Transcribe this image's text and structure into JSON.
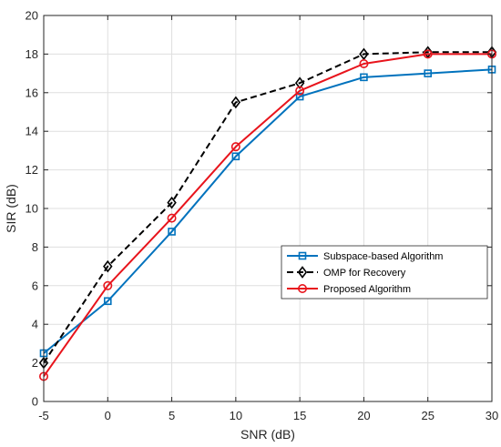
{
  "chart_data": {
    "type": "line",
    "title": "",
    "xlabel": "SNR (dB)",
    "ylabel": "SIR (dB)",
    "xlim": [
      -5,
      30
    ],
    "ylim": [
      0,
      20
    ],
    "xticks": [
      -5,
      0,
      5,
      10,
      15,
      20,
      25,
      30
    ],
    "yticks": [
      0,
      2,
      4,
      6,
      8,
      10,
      12,
      14,
      16,
      18,
      20
    ],
    "grid": true,
    "legend_position": "lower-right",
    "x": [
      -5,
      0,
      5,
      10,
      15,
      20,
      25,
      30
    ],
    "series": [
      {
        "name": "Subspace-based Algorithm",
        "values": [
          2.5,
          5.2,
          8.8,
          12.7,
          15.8,
          16.8,
          17.0,
          17.2
        ],
        "color": "#0072BD",
        "linestyle": "solid",
        "marker": "square"
      },
      {
        "name": "OMP for Recovery",
        "values": [
          2.0,
          7.0,
          10.3,
          15.5,
          16.5,
          18.0,
          18.1,
          18.1
        ],
        "color": "#000000",
        "linestyle": "dashed",
        "marker": "diamond"
      },
      {
        "name": "Proposed Algorithm",
        "values": [
          1.3,
          6.0,
          9.5,
          13.2,
          16.1,
          17.5,
          18.0,
          18.0
        ],
        "color": "#E8141C",
        "linestyle": "solid",
        "marker": "circle"
      }
    ]
  }
}
